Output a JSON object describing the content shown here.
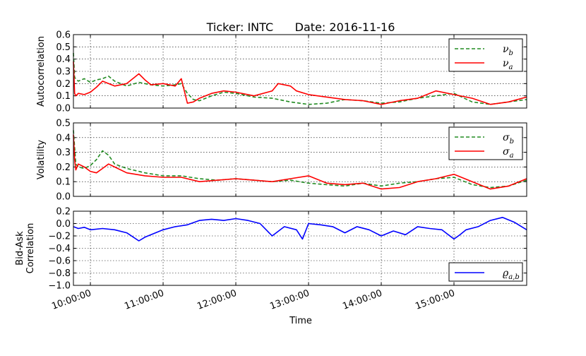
{
  "chart_data": {
    "type": "line",
    "title": "Ticker: INTC      Date: 2016-11-16",
    "xlabel": "Time",
    "x_ticks": [
      "10:00:00",
      "11:00:00",
      "12:00:00",
      "13:00:00",
      "14:00:00",
      "15:00:00"
    ],
    "x_range": [
      "09:46",
      "16:00"
    ],
    "grid": true,
    "panels": [
      {
        "ylabel": "Autocorrelation",
        "ylim": [
          0.0,
          0.6
        ],
        "y_ticks": [
          "0.0",
          "0.1",
          "0.2",
          "0.3",
          "0.4",
          "0.5",
          "0.6"
        ],
        "legend_position": "top-right",
        "series": [
          {
            "name": "νb",
            "name_base": "ν",
            "name_sub": "b",
            "color": "#228b22",
            "style": "dashed",
            "x": [
              "09:46",
              "09:47",
              "09:50",
              "09:55",
              "10:00",
              "10:05",
              "10:10",
              "10:15",
              "10:20",
              "10:30",
              "10:40",
              "10:50",
              "11:00",
              "11:10",
              "11:15",
              "11:20",
              "11:25",
              "11:30",
              "11:40",
              "11:50",
              "12:00",
              "12:15",
              "12:30",
              "12:45",
              "13:00",
              "13:15",
              "13:30",
              "13:45",
              "14:00",
              "14:15",
              "14:30",
              "14:45",
              "15:00",
              "15:15",
              "15:30",
              "15:45",
              "16:00"
            ],
            "y": [
              0.45,
              0.25,
              0.22,
              0.24,
              0.21,
              0.23,
              0.24,
              0.26,
              0.22,
              0.18,
              0.21,
              0.19,
              0.18,
              0.19,
              0.2,
              0.12,
              0.07,
              0.06,
              0.1,
              0.13,
              0.12,
              0.09,
              0.08,
              0.05,
              0.03,
              0.04,
              0.07,
              0.06,
              0.04,
              0.05,
              0.08,
              0.1,
              0.12,
              0.05,
              0.03,
              0.05,
              0.07
            ]
          },
          {
            "name": "νa",
            "name_base": "ν",
            "name_sub": "a",
            "color": "#ff0000",
            "style": "solid",
            "x": [
              "09:46",
              "09:47",
              "09:48",
              "09:50",
              "09:55",
              "10:00",
              "10:05",
              "10:10",
              "10:20",
              "10:30",
              "10:40",
              "10:45",
              "10:50",
              "11:00",
              "11:10",
              "11:15",
              "11:20",
              "11:25",
              "11:30",
              "11:40",
              "11:50",
              "12:00",
              "12:15",
              "12:30",
              "12:35",
              "12:45",
              "12:50",
              "13:00",
              "13:15",
              "13:30",
              "13:45",
              "14:00",
              "14:15",
              "14:30",
              "14:45",
              "15:00",
              "15:15",
              "15:30",
              "15:45",
              "16:00"
            ],
            "y": [
              0.38,
              0.12,
              0.1,
              0.12,
              0.11,
              0.13,
              0.17,
              0.22,
              0.18,
              0.2,
              0.28,
              0.23,
              0.19,
              0.2,
              0.18,
              0.24,
              0.04,
              0.05,
              0.08,
              0.12,
              0.14,
              0.13,
              0.1,
              0.14,
              0.2,
              0.18,
              0.14,
              0.11,
              0.09,
              0.07,
              0.06,
              0.03,
              0.06,
              0.08,
              0.14,
              0.11,
              0.08,
              0.03,
              0.05,
              0.09
            ]
          }
        ]
      },
      {
        "ylabel": "Volatility",
        "ylim": [
          0.0,
          0.5
        ],
        "y_ticks": [
          "0.0",
          "0.1",
          "0.2",
          "0.3",
          "0.4",
          "0.5"
        ],
        "legend_position": "top-right",
        "series": [
          {
            "name": "σb",
            "name_base": "σ",
            "name_sub": "b",
            "color": "#228b22",
            "style": "dashed",
            "x": [
              "09:46",
              "09:48",
              "09:50",
              "09:55",
              "10:00",
              "10:05",
              "10:10",
              "10:15",
              "10:20",
              "10:30",
              "10:45",
              "11:00",
              "11:15",
              "11:30",
              "11:45",
              "12:00",
              "12:15",
              "12:30",
              "12:45",
              "13:00",
              "13:15",
              "13:30",
              "13:45",
              "14:00",
              "14:15",
              "14:30",
              "14:45",
              "15:00",
              "15:15",
              "15:30",
              "15:45",
              "16:00"
            ],
            "y": [
              0.45,
              0.22,
              0.2,
              0.19,
              0.21,
              0.25,
              0.31,
              0.28,
              0.22,
              0.19,
              0.16,
              0.14,
              0.14,
              0.12,
              0.11,
              0.12,
              0.11,
              0.1,
              0.11,
              0.09,
              0.08,
              0.07,
              0.09,
              0.07,
              0.09,
              0.1,
              0.12,
              0.13,
              0.08,
              0.06,
              0.07,
              0.11
            ]
          },
          {
            "name": "σa",
            "name_base": "σ",
            "name_sub": "a",
            "color": "#ff0000",
            "style": "solid",
            "x": [
              "09:46",
              "09:47",
              "09:48",
              "09:50",
              "09:55",
              "10:00",
              "10:05",
              "10:10",
              "10:15",
              "10:20",
              "10:30",
              "10:45",
              "11:00",
              "11:15",
              "11:30",
              "11:45",
              "12:00",
              "12:15",
              "12:30",
              "12:45",
              "13:00",
              "13:15",
              "13:30",
              "13:45",
              "14:00",
              "14:15",
              "14:30",
              "14:45",
              "15:00",
              "15:15",
              "15:30",
              "15:45",
              "16:00"
            ],
            "y": [
              0.42,
              0.25,
              0.18,
              0.22,
              0.2,
              0.17,
              0.16,
              0.19,
              0.22,
              0.2,
              0.16,
              0.14,
              0.13,
              0.13,
              0.1,
              0.11,
              0.12,
              0.11,
              0.1,
              0.12,
              0.14,
              0.09,
              0.08,
              0.09,
              0.05,
              0.06,
              0.1,
              0.12,
              0.15,
              0.1,
              0.05,
              0.07,
              0.12
            ]
          }
        ]
      },
      {
        "ylabel": "Bid-Ask Correlation",
        "ylabel_lines": [
          "Bid-Ask",
          "Correlation"
        ],
        "ylim": [
          -1.0,
          0.2
        ],
        "y_ticks": [
          "−1.0",
          "−0.8",
          "−0.6",
          "−0.4",
          "−0.2",
          "0.0",
          "0.2"
        ],
        "legend_position": "bottom-right",
        "series": [
          {
            "name": "ϱa,b",
            "name_base": "ϱ",
            "name_sub": "a,b",
            "color": "#0000ff",
            "style": "solid",
            "x": [
              "09:46",
              "09:50",
              "09:55",
              "10:00",
              "10:10",
              "10:20",
              "10:30",
              "10:40",
              "10:45",
              "10:50",
              "11:00",
              "11:10",
              "11:20",
              "11:30",
              "11:40",
              "11:50",
              "12:00",
              "12:10",
              "12:20",
              "12:30",
              "12:40",
              "12:50",
              "12:55",
              "13:00",
              "13:10",
              "13:20",
              "13:30",
              "13:40",
              "13:50",
              "14:00",
              "14:10",
              "14:20",
              "14:30",
              "14:40",
              "14:50",
              "15:00",
              "15:05",
              "15:10",
              "15:20",
              "15:30",
              "15:40",
              "15:50",
              "16:00"
            ],
            "y": [
              -0.05,
              -0.08,
              -0.06,
              -0.1,
              -0.08,
              -0.1,
              -0.15,
              -0.28,
              -0.22,
              -0.18,
              -0.1,
              -0.05,
              -0.02,
              0.05,
              0.07,
              0.05,
              0.08,
              0.05,
              0.0,
              -0.2,
              -0.05,
              -0.1,
              -0.25,
              0.0,
              -0.02,
              -0.05,
              -0.15,
              -0.05,
              -0.1,
              -0.2,
              -0.12,
              -0.18,
              -0.05,
              -0.08,
              -0.1,
              -0.25,
              -0.18,
              -0.1,
              -0.05,
              0.05,
              0.1,
              0.02,
              -0.1
            ]
          }
        ]
      }
    ]
  }
}
